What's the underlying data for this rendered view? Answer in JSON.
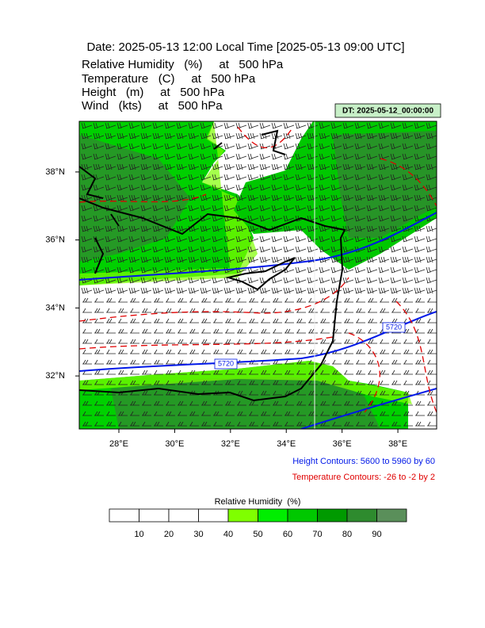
{
  "title": "Date: 2025-05-13  12:00 Local Time [2025-05-13  09:00 UTC]",
  "lines": [
    "Relative Humidity   (%)     at   500 hPa",
    "Temperature   (C)     at   500 hPa",
    "Height   (m)     at   500 hPa",
    "Wind   (kts)     at   500 hPa"
  ],
  "dt_label": "DT: 2025-05-12_00:00:00",
  "map": {
    "lon_range": [
      26.58,
      39.39
    ],
    "lat_range": [
      30.44,
      39.49
    ],
    "lon_ticks": [
      {
        "value": 28,
        "label": "28°E"
      },
      {
        "value": 30,
        "label": "30°E"
      },
      {
        "value": 32,
        "label": "32°E"
      },
      {
        "value": 34,
        "label": "34°E"
      },
      {
        "value": 36,
        "label": "36°E"
      },
      {
        "value": 38,
        "label": "38°E"
      }
    ],
    "lat_ticks": [
      {
        "value": 38,
        "label": "38°N"
      },
      {
        "value": 36,
        "label": "36°N"
      },
      {
        "value": 34,
        "label": "34°N"
      },
      {
        "value": 32,
        "label": "32°N"
      }
    ],
    "contour_labels": [
      "5720",
      "5720"
    ]
  },
  "legend": {
    "height": "Height Contours: 5600 to 5960 by 60",
    "temperature": "Temperature Contours: -26 to -2 by 2"
  },
  "colorbar": {
    "title": "Relative Humidity  (%)",
    "labels": [
      10,
      20,
      30,
      40,
      50,
      60,
      70,
      80,
      90
    ],
    "colors": [
      "#ffffff",
      "#ffffff",
      "#ffffff",
      "#ffffff",
      "#7fff00",
      "#00ee00",
      "#00c800",
      "#009a00",
      "#2e8b2e",
      "#5a8f5a"
    ]
  }
}
